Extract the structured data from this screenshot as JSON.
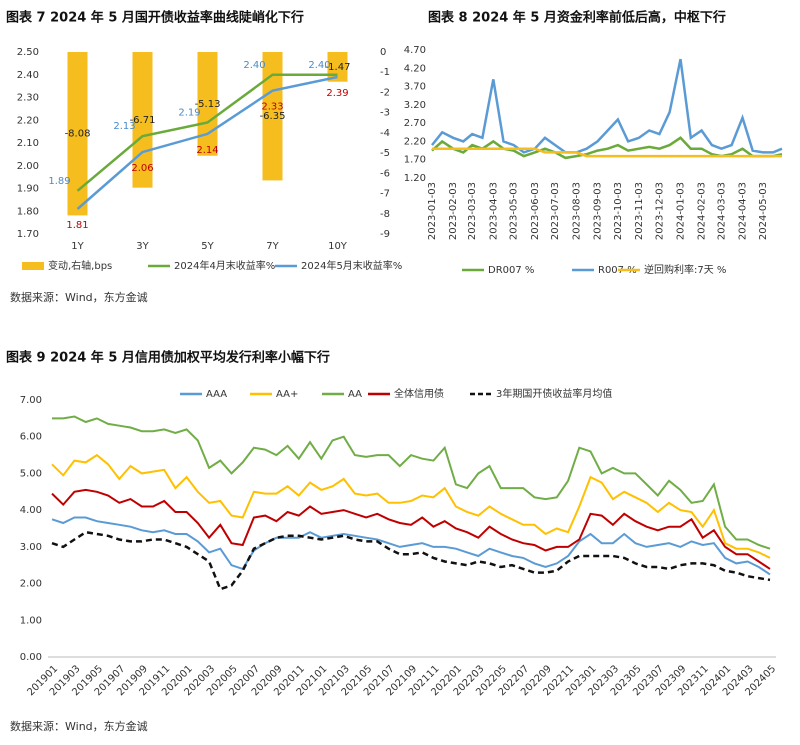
{
  "chart_data": [
    {
      "type": "combo",
      "title": "图表 7  2024 年 5 月国开债收益率曲线陡峭化下行",
      "categories": [
        "1Y",
        "3Y",
        "5Y",
        "7Y",
        "10Y"
      ],
      "ylim": [
        1.7,
        2.5
      ],
      "yticks": [
        {
          "value": 1.7,
          "label": "1.70"
        },
        {
          "value": 1.8,
          "label": "1.80"
        },
        {
          "value": 1.9,
          "label": "1.90"
        },
        {
          "value": 2.0,
          "label": "2.00"
        },
        {
          "value": 2.1,
          "label": "2.10"
        },
        {
          "value": 2.2,
          "label": "2.20"
        },
        {
          "value": 2.3,
          "label": "2.30"
        },
        {
          "value": 2.4,
          "label": "2.40"
        },
        {
          "value": 2.5,
          "label": "2.50"
        }
      ],
      "y2lim": [
        -9,
        0
      ],
      "y2ticks": [
        0,
        -1,
        -2,
        -3,
        -4,
        -5,
        -6,
        -7,
        -8,
        -9
      ],
      "series": [
        {
          "name": "变动,右轴,bps",
          "type": "bar",
          "axis": "y2",
          "color": "#f5be1e",
          "label_color": "#222222",
          "values": [
            -8.08,
            -6.71,
            -5.13,
            -6.35,
            -1.47
          ]
        },
        {
          "name": "2024年4月末收益率%",
          "type": "line",
          "color": "#6aaa3a",
          "label_color": "#4a8ac8",
          "values": [
            1.89,
            2.13,
            2.19,
            2.4,
            2.4
          ],
          "value_labels": [
            "1.89",
            "2.13",
            "2.19",
            "2.40",
            "2.40"
          ]
        },
        {
          "name": "2024年5月末收益率%",
          "type": "line",
          "color": "#5b9bd5",
          "label_color": "#c00000",
          "values": [
            1.81,
            2.06,
            2.14,
            2.33,
            2.39
          ]
        }
      ],
      "source": "数据来源：Wind，东方金诚"
    },
    {
      "type": "timeline",
      "title": "图表 8   2024 年 5 月资金利率前低后高，中枢下行",
      "x": [
        "2023-01-03",
        "2023-01-18",
        "2023-02-03",
        "2023-02-18",
        "2023-03-03",
        "2023-03-18",
        "2023-04-03",
        "2023-04-18",
        "2023-05-03",
        "2023-05-18",
        "2023-06-03",
        "2023-06-18",
        "2023-07-03",
        "2023-07-18",
        "2023-08-03",
        "2023-08-18",
        "2023-09-03",
        "2023-09-18",
        "2023-10-03",
        "2023-10-18",
        "2023-11-03",
        "2023-11-18",
        "2023-12-03",
        "2023-12-18",
        "2024-01-03",
        "2024-01-18",
        "2024-02-03",
        "2024-02-18",
        "2024-03-03",
        "2024-03-18",
        "2024-04-03",
        "2024-04-18",
        "2024-05-03",
        "2024-05-18",
        "2024-05-31"
      ],
      "xticks": [
        "2023-01-03",
        "2023-02-03",
        "2023-03-03",
        "2023-04-03",
        "2023-05-03",
        "2023-06-03",
        "2023-07-03",
        "2023-08-03",
        "2023-09-03",
        "2023-10-03",
        "2023-11-03",
        "2023-12-03",
        "2024-01-03",
        "2024-02-03",
        "2024-03-03",
        "2024-04-03",
        "2024-05-03"
      ],
      "ylim": [
        1.2,
        4.7
      ],
      "yticks": [
        {
          "value": 1.2,
          "label": "1.20"
        },
        {
          "value": 1.7,
          "label": "1.70"
        },
        {
          "value": 2.2,
          "label": "2.20"
        },
        {
          "value": 2.7,
          "label": "2.70"
        },
        {
          "value": 3.2,
          "label": "3.20"
        },
        {
          "value": 3.7,
          "label": "3.70"
        },
        {
          "value": 4.2,
          "label": "4.20"
        },
        {
          "value": 4.7,
          "label": "4.70"
        }
      ],
      "series": [
        {
          "name": "DR007 %",
          "color": "#6aaa3a",
          "values": [
            1.95,
            2.2,
            2.0,
            1.9,
            2.1,
            2.0,
            2.2,
            2.0,
            1.95,
            1.8,
            1.9,
            2.0,
            1.9,
            1.75,
            1.8,
            1.85,
            1.95,
            2.0,
            2.1,
            1.95,
            2.0,
            2.05,
            2.0,
            2.1,
            2.3,
            2.0,
            2.0,
            1.85,
            1.8,
            1.85,
            2.0,
            1.8,
            1.8,
            1.8,
            1.85
          ]
        },
        {
          "name": "R007 %",
          "color": "#5b9bd5",
          "values": [
            2.1,
            2.45,
            2.3,
            2.2,
            2.4,
            2.3,
            3.9,
            2.2,
            2.1,
            1.9,
            2.0,
            2.3,
            2.1,
            1.9,
            1.9,
            2.0,
            2.2,
            2.5,
            2.8,
            2.2,
            2.3,
            2.5,
            2.4,
            3.0,
            4.45,
            2.3,
            2.5,
            2.1,
            2.0,
            2.1,
            2.85,
            1.95,
            1.9,
            1.9,
            2.0
          ]
        },
        {
          "name": "逆回购利率:7天 %",
          "color": "#f5be1e",
          "values": [
            2.0,
            2.0,
            2.0,
            2.0,
            2.0,
            2.0,
            2.0,
            2.0,
            2.0,
            2.0,
            2.0,
            1.9,
            1.9,
            1.9,
            1.9,
            1.8,
            1.8,
            1.8,
            1.8,
            1.8,
            1.8,
            1.8,
            1.8,
            1.8,
            1.8,
            1.8,
            1.8,
            1.8,
            1.8,
            1.8,
            1.8,
            1.8,
            1.8,
            1.8,
            1.8
          ]
        }
      ]
    },
    {
      "type": "line",
      "title": "图表 9   2024 年 5 月信用债加权平均发行利率小幅下行",
      "categories": [
        "201901",
        null,
        "201903",
        null,
        "201905",
        null,
        "201907",
        null,
        "201909",
        null,
        "201911",
        null,
        "202001",
        null,
        "202003",
        null,
        "202005",
        null,
        "202007",
        null,
        "202009",
        null,
        "202011",
        null,
        "202101",
        null,
        "202103",
        null,
        "202105",
        null,
        "202107",
        null,
        "202109",
        null,
        "202111",
        null,
        "202201",
        null,
        "202203",
        null,
        "202205",
        null,
        "202207",
        null,
        "202209",
        null,
        "202211",
        null,
        "202301",
        null,
        "202303",
        null,
        "202305",
        null,
        "202307",
        null,
        "202309",
        null,
        "202311",
        null,
        "202401",
        null,
        "202403",
        null,
        "202405"
      ],
      "ylim": [
        0,
        7
      ],
      "yticks": [
        {
          "value": 0,
          "label": "0.00"
        },
        {
          "value": 1,
          "label": "1.00"
        },
        {
          "value": 2,
          "label": "2.00"
        },
        {
          "value": 3,
          "label": "3.00"
        },
        {
          "value": 4,
          "label": "4.00"
        },
        {
          "value": 5,
          "label": "5.00"
        },
        {
          "value": 6,
          "label": "6.00"
        },
        {
          "value": 7,
          "label": "7.00"
        }
      ],
      "series": [
        {
          "name": "AAA",
          "color": "#5b9bd5",
          "values": [
            3.75,
            3.65,
            3.8,
            3.8,
            3.7,
            3.65,
            3.6,
            3.55,
            3.45,
            3.4,
            3.45,
            3.35,
            3.35,
            3.15,
            2.85,
            2.95,
            2.5,
            2.4,
            2.9,
            3.1,
            3.25,
            3.25,
            3.25,
            3.4,
            3.25,
            3.3,
            3.35,
            3.3,
            3.25,
            3.2,
            3.1,
            3.0,
            3.05,
            3.1,
            3.0,
            3.0,
            2.95,
            2.85,
            2.75,
            2.95,
            2.85,
            2.75,
            2.7,
            2.55,
            2.45,
            2.55,
            2.75,
            3.15,
            3.35,
            3.1,
            3.1,
            3.35,
            3.1,
            3.0,
            3.05,
            3.1,
            3.0,
            3.15,
            3.05,
            3.1,
            2.7,
            2.55,
            2.6,
            2.45,
            2.25
          ]
        },
        {
          "name": "AA+",
          "color": "#ffc000",
          "values": [
            5.25,
            4.95,
            5.35,
            5.3,
            5.5,
            5.25,
            4.85,
            5.2,
            5.0,
            5.05,
            5.1,
            4.6,
            4.9,
            4.5,
            4.2,
            4.25,
            3.85,
            3.8,
            4.5,
            4.45,
            4.45,
            4.65,
            4.4,
            4.75,
            4.55,
            4.65,
            4.85,
            4.45,
            4.4,
            4.45,
            4.2,
            4.2,
            4.25,
            4.4,
            4.35,
            4.6,
            4.1,
            3.95,
            3.85,
            4.1,
            3.9,
            3.75,
            3.6,
            3.6,
            3.35,
            3.5,
            3.4,
            4.1,
            4.9,
            4.75,
            4.3,
            4.5,
            4.35,
            4.2,
            3.95,
            4.2,
            4.0,
            3.95,
            3.55,
            4.0,
            3.1,
            2.95,
            2.95,
            2.85,
            2.7
          ]
        },
        {
          "name": "AA",
          "color": "#70ad47",
          "values": [
            6.5,
            6.5,
            6.55,
            6.4,
            6.5,
            6.35,
            6.3,
            6.25,
            6.15,
            6.15,
            6.2,
            6.1,
            6.2,
            5.9,
            5.15,
            5.35,
            5.0,
            5.3,
            5.7,
            5.65,
            5.5,
            5.75,
            5.4,
            5.85,
            5.4,
            5.9,
            6.0,
            5.5,
            5.45,
            5.5,
            5.5,
            5.2,
            5.5,
            5.4,
            5.35,
            5.7,
            4.7,
            4.6,
            5.0,
            5.2,
            4.6,
            4.6,
            4.6,
            4.35,
            4.3,
            4.35,
            4.8,
            5.7,
            5.6,
            5.0,
            5.15,
            5.0,
            5.0,
            4.7,
            4.4,
            4.8,
            4.55,
            4.2,
            4.25,
            4.7,
            3.55,
            3.2,
            3.2,
            3.05,
            2.95
          ]
        },
        {
          "name": "全体信用债",
          "color": "#c00000",
          "values": [
            4.45,
            4.15,
            4.5,
            4.55,
            4.5,
            4.4,
            4.2,
            4.3,
            4.1,
            4.1,
            4.25,
            3.95,
            3.95,
            3.65,
            3.25,
            3.6,
            3.1,
            3.05,
            3.8,
            3.85,
            3.7,
            3.95,
            3.85,
            4.1,
            3.9,
            3.95,
            4.0,
            3.9,
            3.8,
            3.9,
            3.75,
            3.65,
            3.6,
            3.8,
            3.55,
            3.7,
            3.5,
            3.4,
            3.25,
            3.55,
            3.35,
            3.2,
            3.1,
            3.05,
            2.9,
            3.0,
            3.0,
            3.2,
            3.9,
            3.85,
            3.6,
            3.9,
            3.7,
            3.55,
            3.45,
            3.55,
            3.55,
            3.75,
            3.25,
            3.45,
            3.0,
            2.8,
            2.8,
            2.6,
            2.4
          ]
        },
        {
          "name": "3年期国开债收益率月均值",
          "color": "#111111",
          "dash": true,
          "values": [
            3.1,
            3.0,
            3.2,
            3.4,
            3.35,
            3.3,
            3.2,
            3.15,
            3.15,
            3.2,
            3.2,
            3.1,
            3.0,
            2.8,
            2.6,
            1.85,
            1.95,
            2.35,
            2.95,
            3.1,
            3.25,
            3.3,
            3.3,
            3.25,
            3.2,
            3.25,
            3.3,
            3.2,
            3.15,
            3.15,
            2.95,
            2.8,
            2.8,
            2.85,
            2.7,
            2.6,
            2.55,
            2.5,
            2.6,
            2.55,
            2.45,
            2.5,
            2.4,
            2.3,
            2.3,
            2.35,
            2.6,
            2.75,
            2.75,
            2.75,
            2.75,
            2.7,
            2.55,
            2.45,
            2.45,
            2.4,
            2.5,
            2.55,
            2.55,
            2.5,
            2.35,
            2.3,
            2.2,
            2.15,
            2.1
          ]
        }
      ],
      "source": "数据来源：Wind，东方金诚"
    }
  ]
}
